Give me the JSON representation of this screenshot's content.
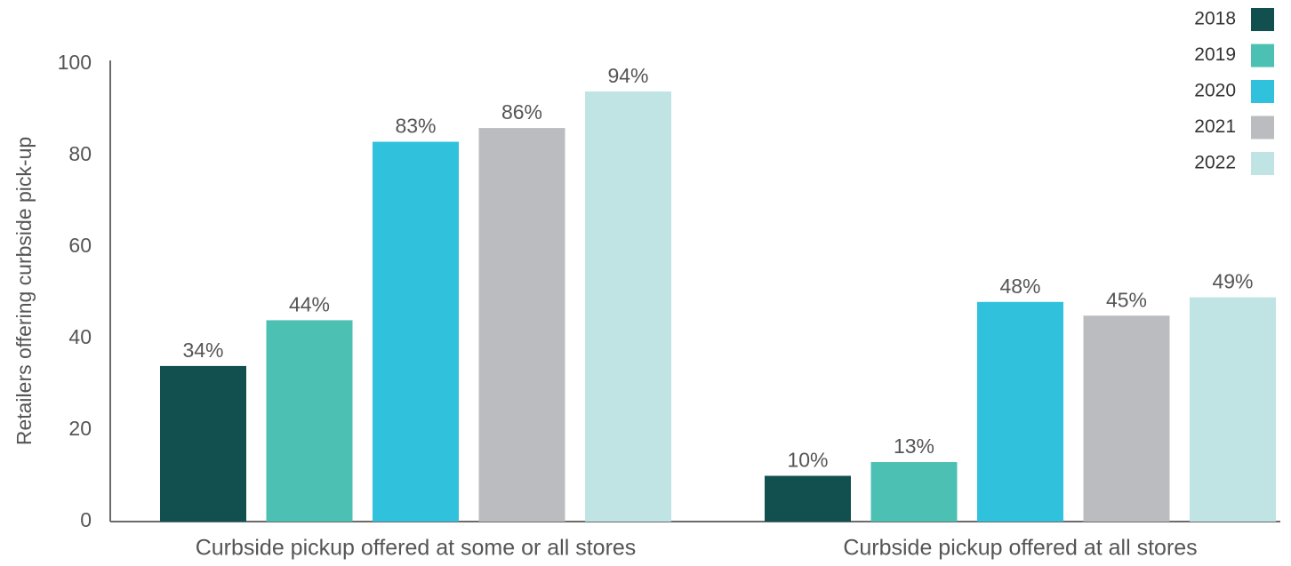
{
  "chart_data": {
    "type": "bar",
    "title": "",
    "xlabel": "",
    "ylabel": "Retailers offering curbside pick-up",
    "categories": [
      "Curbside pickup offered at some or all stores",
      "Curbside pickup offered at all stores"
    ],
    "series": [
      {
        "name": "2018",
        "color": "#124f4f",
        "values": [
          34,
          10
        ],
        "labels": [
          "34%",
          "10%"
        ]
      },
      {
        "name": "2019",
        "color": "#4cc0b3",
        "values": [
          44,
          13
        ],
        "labels": [
          "44%",
          "13%"
        ]
      },
      {
        "name": "2020",
        "color": "#30c1dd",
        "values": [
          83,
          48
        ],
        "labels": [
          "83%",
          "48%"
        ]
      },
      {
        "name": "2021",
        "color": "#bbbcbf",
        "values": [
          86,
          45
        ],
        "labels": [
          "86%",
          "45%"
        ]
      },
      {
        "name": "2022",
        "color": "#c0e3e3",
        "values": [
          94,
          49
        ],
        "labels": [
          "94%",
          "49%"
        ]
      }
    ],
    "ylim": [
      0,
      100
    ],
    "yticks": [
      "0",
      "20",
      "40",
      "60",
      "80",
      "100"
    ],
    "grid": false,
    "legend_position": "top-right",
    "axis_color": "#6b6b6b",
    "text_color": "#555555"
  }
}
